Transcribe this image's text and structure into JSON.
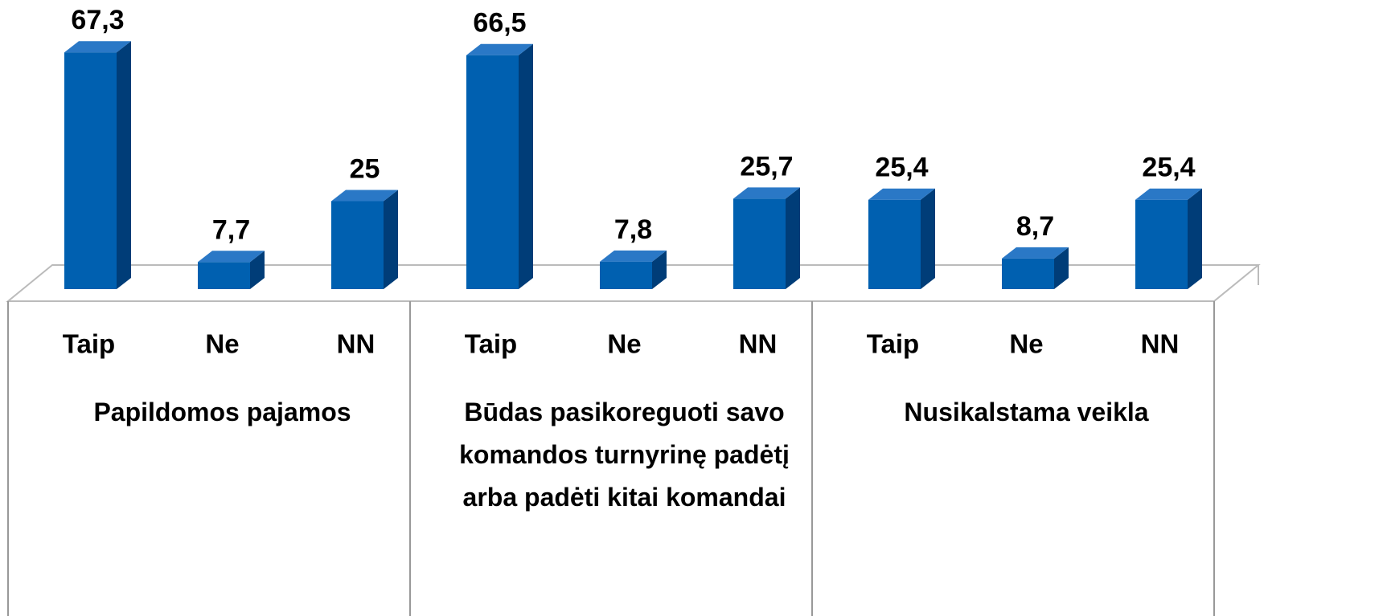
{
  "chart_data": {
    "type": "bar3d",
    "groups": [
      {
        "name": "Papildomos pajamos",
        "categories": [
          "Taip",
          "Ne",
          "NN"
        ],
        "values": [
          67.3,
          7.7,
          25
        ],
        "value_labels": [
          "67,3",
          "7,7",
          "25"
        ]
      },
      {
        "name": "Būdas pasikoreguoti savo komandos turnyrinę padėtį arba padėti kitai komandai",
        "categories": [
          "Taip",
          "Ne",
          "NN"
        ],
        "values": [
          66.5,
          7.8,
          25.7
        ],
        "value_labels": [
          "66,5",
          "7,8",
          "25,7"
        ]
      },
      {
        "name": "Nusikalstama veikla",
        "categories": [
          "Taip",
          "Ne",
          "NN"
        ],
        "values": [
          25.4,
          8.7,
          25.4
        ],
        "value_labels": [
          "25,4",
          "8,7",
          "25,4"
        ]
      }
    ],
    "colors": {
      "front": "#0060b0",
      "side": "#003d78",
      "top": "#2a78c6"
    }
  }
}
